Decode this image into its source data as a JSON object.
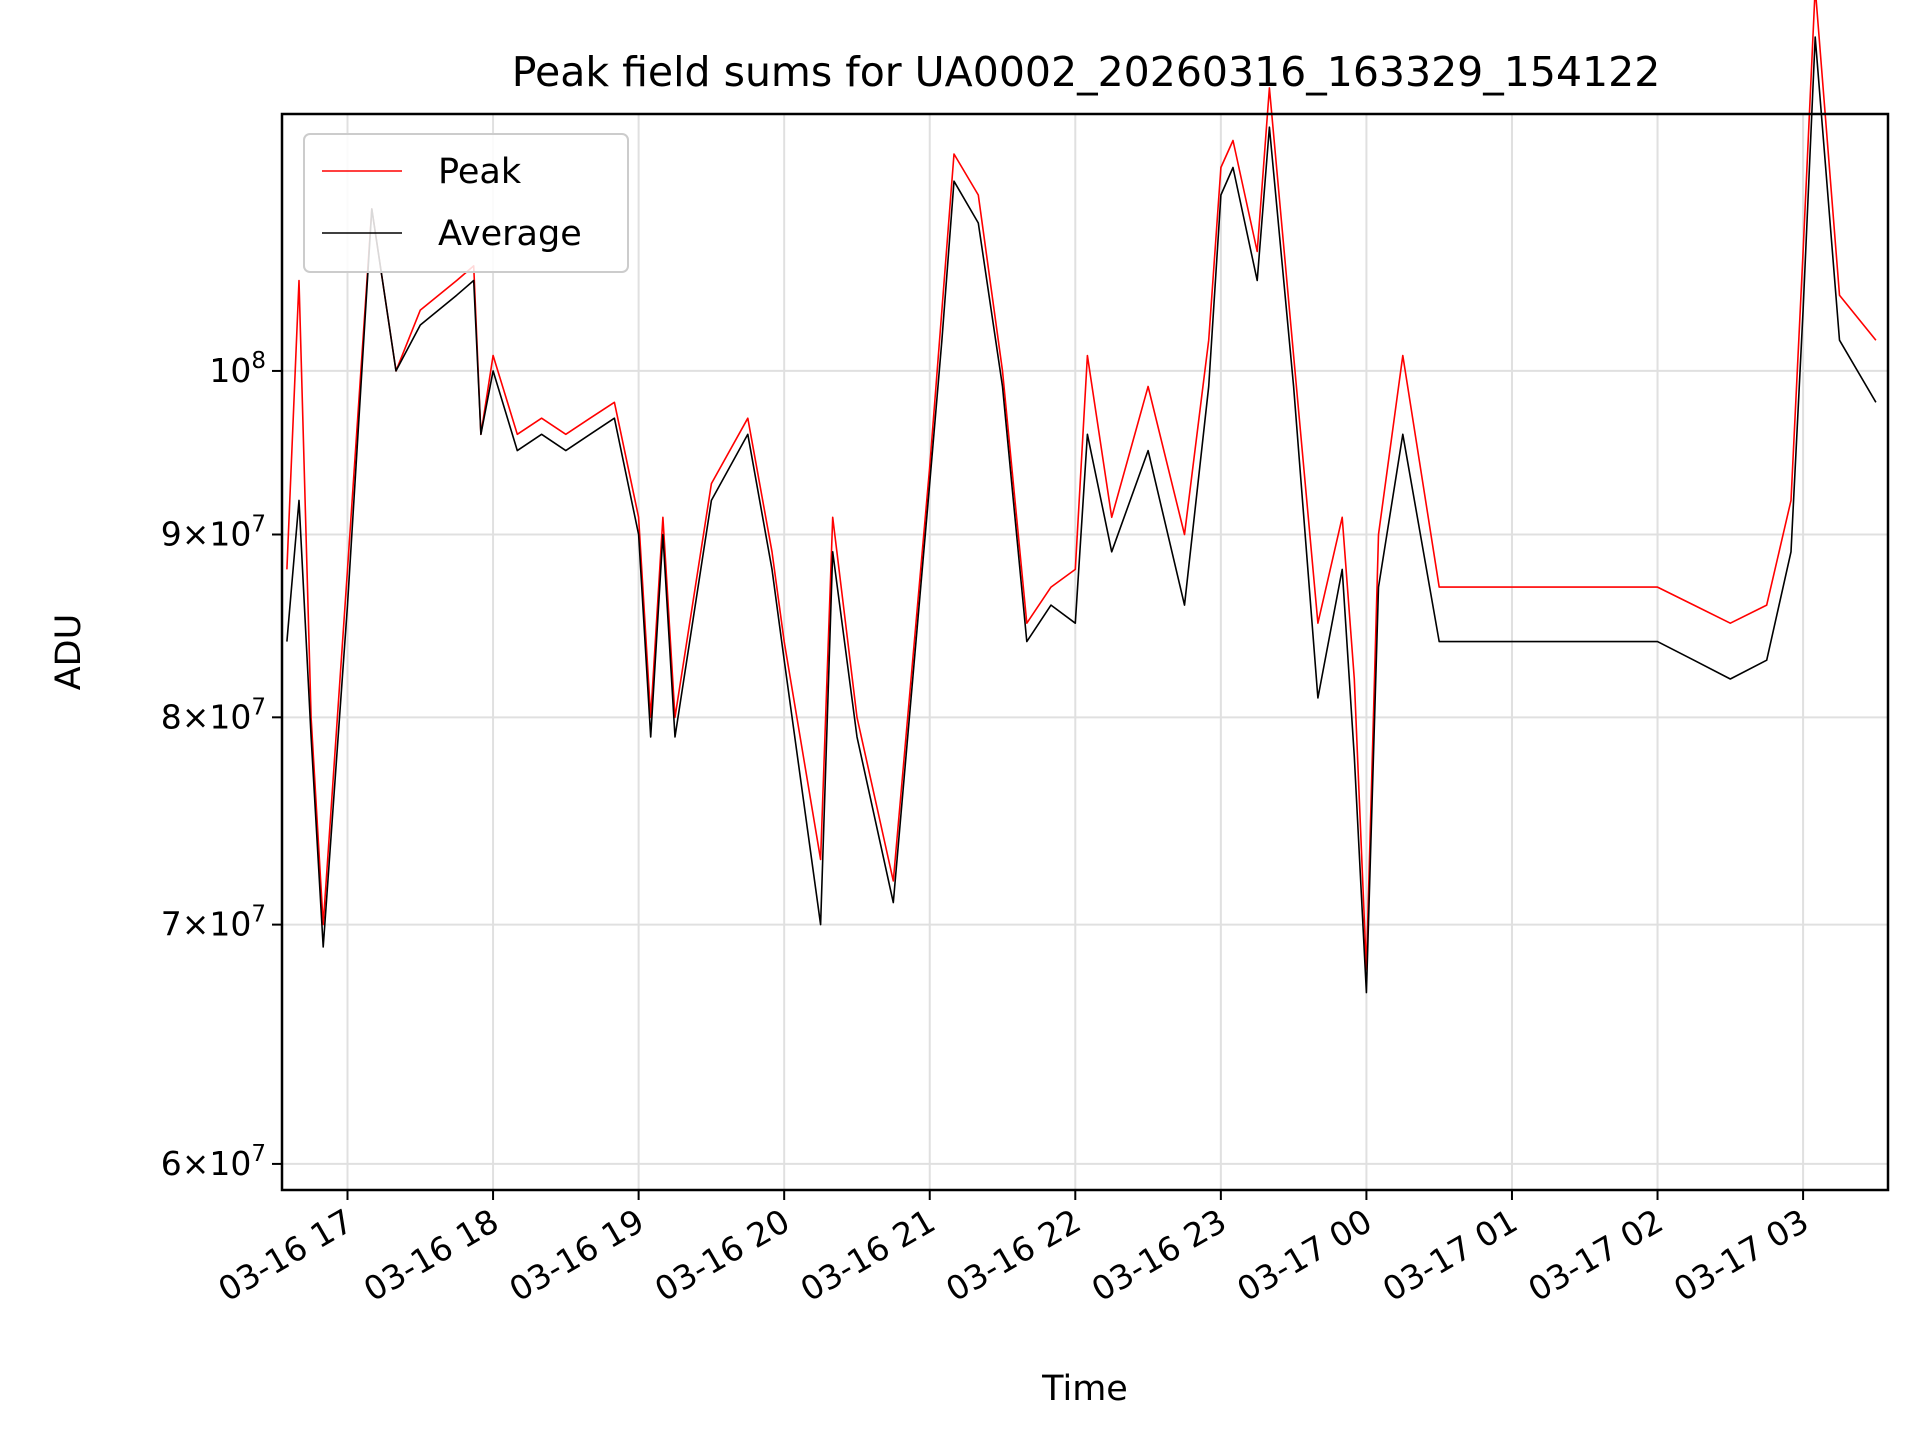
{
  "chart_data": {
    "type": "line",
    "title": "Peak field sums for UA0002_20260316_163329_154122",
    "xlabel": "Time",
    "ylabel": "ADU",
    "y_scale": "log",
    "xlim": [
      "03-16 16:33",
      "03-17 03:35"
    ],
    "ylim": [
      59000000,
      118000000
    ],
    "grid": true,
    "legend": "top-left",
    "x_ticks": [
      "03-16 17",
      "03-16 18",
      "03-16 19",
      "03-16 20",
      "03-16 21",
      "03-16 22",
      "03-16 23",
      "03-17 00",
      "03-17 01",
      "03-17 02",
      "03-17 03"
    ],
    "y_ticks": [
      {
        "value": 60000000,
        "mantissa": "6",
        "exponent": "7"
      },
      {
        "value": 70000000,
        "mantissa": "7",
        "exponent": "7"
      },
      {
        "value": 80000000,
        "mantissa": "8",
        "exponent": "7"
      },
      {
        "value": 90000000,
        "mantissa": "9",
        "exponent": "7"
      },
      {
        "value": 100000000,
        "mantissa": "10",
        "exponent": "8"
      }
    ],
    "x": [
      "03-16 16:35",
      "03-16 16:40",
      "03-16 16:45",
      "03-16 16:50",
      "03-16 17:00",
      "03-16 17:10",
      "03-16 17:20",
      "03-16 17:30",
      "03-16 17:45",
      "03-16 17:52",
      "03-16 17:55",
      "03-16 18:00",
      "03-16 18:10",
      "03-16 18:20",
      "03-16 18:30",
      "03-16 18:40",
      "03-16 18:50",
      "03-16 19:00",
      "03-16 19:05",
      "03-16 19:10",
      "03-16 19:15",
      "03-16 19:30",
      "03-16 19:45",
      "03-16 19:55",
      "03-16 20:00",
      "03-16 20:15",
      "03-16 20:20",
      "03-16 20:30",
      "03-16 20:45",
      "03-16 21:00",
      "03-16 21:05",
      "03-16 21:10",
      "03-16 21:20",
      "03-16 21:30",
      "03-16 21:40",
      "03-16 21:50",
      "03-16 22:00",
      "03-16 22:05",
      "03-16 22:15",
      "03-16 22:30",
      "03-16 22:45",
      "03-16 22:55",
      "03-16 23:00",
      "03-16 23:05",
      "03-16 23:15",
      "03-16 23:20",
      "03-16 23:30",
      "03-16 23:40",
      "03-16 23:50",
      "03-16 23:55",
      "03-17 00:00",
      "03-17 00:05",
      "03-17 00:15",
      "03-17 00:30",
      "03-17 01:00",
      "03-17 01:30",
      "03-17 02:00",
      "03-17 02:15",
      "03-17 02:30",
      "03-17 02:45",
      "03-17 02:55",
      "03-17 03:00",
      "03-17 03:05",
      "03-17 03:15",
      "03-17 03:30"
    ],
    "series": [
      {
        "name": "Peak",
        "color": "#ff0000",
        "values": [
          88000000,
          106000000,
          80000000,
          70000000,
          88000000,
          111000000,
          100000000,
          104000000,
          106000000,
          107000000,
          96000000,
          101000000,
          96000000,
          97000000,
          96000000,
          97000000,
          98000000,
          91000000,
          80000000,
          91000000,
          80000000,
          93000000,
          97000000,
          89000000,
          84000000,
          73000000,
          91000000,
          80000000,
          72000000,
          94000000,
          104000000,
          115000000,
          112000000,
          100000000,
          85000000,
          87000000,
          88000000,
          101000000,
          91000000,
          99000000,
          90000000,
          102000000,
          114000000,
          116000000,
          108000000,
          120000000,
          101000000,
          85000000,
          91000000,
          82000000,
          68000000,
          90000000,
          101000000,
          87000000,
          87000000,
          87000000,
          87000000,
          86000000,
          85000000,
          86000000,
          92000000,
          108000000,
          128000000,
          105000000,
          102000000
        ]
      },
      {
        "name": "Average",
        "color": "#000000",
        "values": [
          84000000,
          92000000,
          79000000,
          69000000,
          86000000,
          111000000,
          100000000,
          103000000,
          105000000,
          106000000,
          96000000,
          100000000,
          95000000,
          96000000,
          95000000,
          96000000,
          97000000,
          90000000,
          79000000,
          90000000,
          79000000,
          92000000,
          96000000,
          88000000,
          83000000,
          70000000,
          89000000,
          79000000,
          71000000,
          93000000,
          102000000,
          113000000,
          110000000,
          99000000,
          84000000,
          86000000,
          85000000,
          96000000,
          89000000,
          95000000,
          86000000,
          99000000,
          112000000,
          114000000,
          106000000,
          117000000,
          99000000,
          81000000,
          88000000,
          78000000,
          67000000,
          87000000,
          96000000,
          84000000,
          84000000,
          84000000,
          84000000,
          83000000,
          82000000,
          83000000,
          89000000,
          104000000,
          124000000,
          102000000,
          98000000
        ]
      }
    ]
  }
}
